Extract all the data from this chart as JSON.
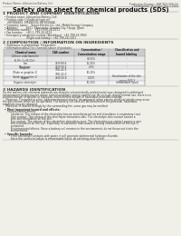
{
  "bg_color": "#f0efe8",
  "header_left": "Product Name: Lithium Ion Battery Cell",
  "header_right_line1": "Publication Number: SNP-SDS-008-10",
  "header_right_line2": "Established / Revision: Dec.7.2010",
  "title": "Safety data sheet for chemical products (SDS)",
  "section1_title": "1 PRODUCT AND COMPANY IDENTIFICATION",
  "section1_lines": [
    "  • Product name: Lithium Ion Battery Cell",
    "  • Product code: Cylindrical-type cell",
    "      (IHF886600, IHF486500, IHF85606A)",
    "  • Company name:    Sanyo Electric Co., Ltd., Mobile Energy Company",
    "  • Address:          2001  Kamiyacho, Sumoto-City, Hyogo, Japan",
    "  • Telephone number:    +81-(799)-26-4111",
    "  • Fax number:    +81-1-799-26-4123",
    "  • Emergency telephone number (Weekdays): +81-799-26-3962",
    "                              (Night and holiday): +81-799-26-3101"
  ],
  "section2_title": "2 COMPOSITION / INFORMATION ON INGREDIENTS",
  "section2_sub": "  • Substance or preparation: Preparation",
  "section2_sub2": "  • Information about the chemical nature of products:",
  "table_headers": [
    "Chemical name",
    "CAS number",
    "Concentration /\nConcentration range",
    "Classification and\nhazard labeling"
  ],
  "table_rows": [
    [
      "Lithium oxide/tantalite\n(Li-Mn-Co-Ni-O2x)",
      "-",
      "30-60%",
      "-"
    ],
    [
      "Iron",
      "7439-89-6",
      "15-25%",
      "-"
    ],
    [
      "Aluminum",
      "7429-90-5",
      "2-5%",
      "-"
    ],
    [
      "Graphite\n(Flake or graphite-1)\n(Artificial graphite-1)",
      "7782-42-5\n7782-42-0",
      "10-20%",
      "-"
    ],
    [
      "Copper",
      "7440-50-8",
      "5-15%",
      "Sensitization of the skin\ngroup: R42,3"
    ],
    [
      "Organic electrolyte",
      "-",
      "10-20%",
      "Inflammable liquid"
    ]
  ],
  "section3_title": "3 HAZARDS IDENTIFICATION",
  "section3_body": [
    "For the battery cell, chemical materials are stored in a hermetically-sealed metal case, designed to withstand",
    "temperatures and pressures above normal conditions during normal use. As a result, during normal use, there is no",
    "physical danger of ignition or explosion and therefore danger of hazardous materials leakage.",
    "    However, if exposed to a fire, added mechanical shocks, decomposed, when electro-chemical attacks may occur",
    "the gas release vents will be operated. The battery cell case will be breached of fire-potential. hazardous",
    "materials may be released.",
    "    Moreover, if heated strongly by the surrounding fire, some gas may be emitted."
  ],
  "section3_sub1": "  • Most important hazard and effects:",
  "section3_sub1b": "      Human health effects:",
  "section3_sub1c": [
    "          Inhalation: The release of the electrolyte has an anesthesia action and stimulates in respiratory tract.",
    "          Skin contact: The release of the electrolyte stimulates skin. The electrolyte skin contact causes a",
    "          sore and stimulation on the skin.",
    "          Eye contact: The release of the electrolyte stimulates eyes. The electrolyte eye contact causes a sore",
    "          and stimulation on the eye. Especially, a substance that causes a strong inflammation of the eye is",
    "          contained."
  ],
  "section3_env": [
    "          Environmental effects: Since a battery cell remains in the environment, do not throw out it into the",
    "          environment."
  ],
  "section3_sub2": "  • Specific hazards:",
  "section3_sub2b": [
    "          If the electrolyte contacts with water, it will generate detrimental hydrogen fluoride.",
    "          Since the used-electrolyte is inflammable liquid, do not bring close to fire."
  ],
  "line_color": "#999999",
  "text_color": "#333333"
}
